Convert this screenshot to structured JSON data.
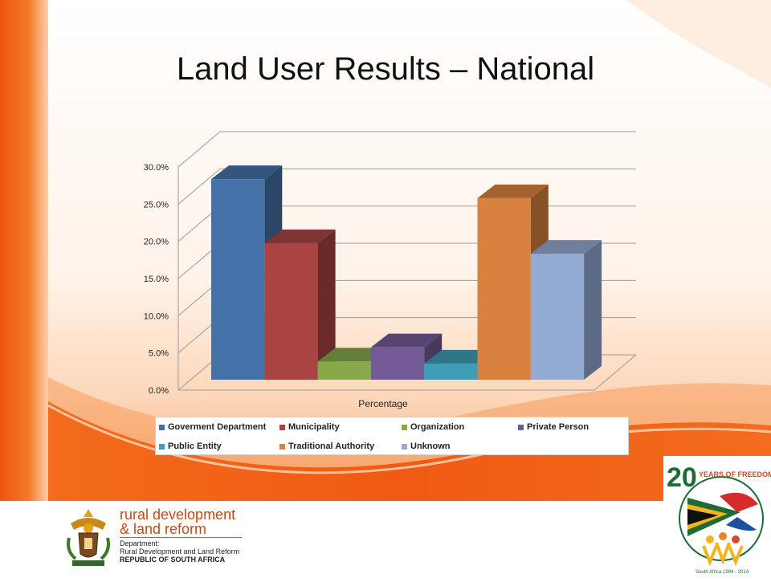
{
  "slide": {
    "title": "Land User Results – National"
  },
  "chart_data": {
    "type": "bar",
    "style": "3d-clustered",
    "title": "",
    "xlabel": "Percentage",
    "ylabel": "",
    "categories": [
      "Percentage"
    ],
    "ylim": [
      0,
      30
    ],
    "yticks": [
      "0.0%",
      "5.0%",
      "10.0%",
      "15.0%",
      "20.0%",
      "25.0%",
      "30.0%"
    ],
    "grid": true,
    "legend_position": "bottom",
    "series": [
      {
        "name": "Goverment Department",
        "values": [
          28.5
        ],
        "color": "#4472a8"
      },
      {
        "name": "Municipality",
        "values": [
          19.4
        ],
        "color": "#a94442"
      },
      {
        "name": "Organization",
        "values": [
          2.6
        ],
        "color": "#87a94a"
      },
      {
        "name": "Private Person",
        "values": [
          4.6
        ],
        "color": "#735a96"
      },
      {
        "name": "Public Entity",
        "values": [
          2.3
        ],
        "color": "#3f9db8"
      },
      {
        "name": "Traditional Authority",
        "values": [
          25.8
        ],
        "color": "#d9823f"
      },
      {
        "name": "Unknown",
        "values": [
          17.9
        ],
        "color": "#94abd4"
      }
    ]
  },
  "footer": {
    "dept_line1": "rural development",
    "dept_line2": "& land reform",
    "dept_sub1": "Department:",
    "dept_sub2": "Rural Development and Land Reform",
    "dept_country": "REPUBLIC OF SOUTH AFRICA",
    "badge_text": "YEARS OF FREEDOM",
    "badge_number": "20",
    "badge_sub": "South Africa 1994 - 2014"
  },
  "colors": {
    "orange": "#f05a14",
    "light_orange": "#f9a56a"
  }
}
